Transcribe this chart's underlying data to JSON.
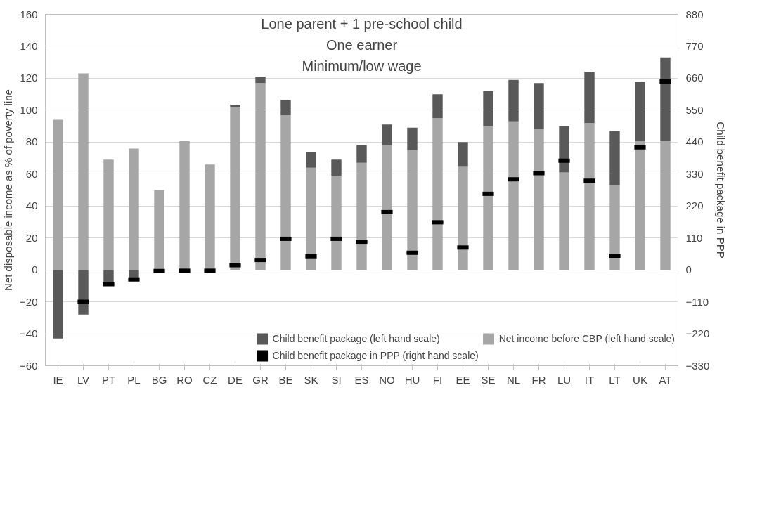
{
  "chart_data": {
    "type": "bar",
    "stacked": true,
    "title": "Lone parent + 1 pre-school child\nOne earner\nMinimum/low wage",
    "ylabel": "Net disposable income as % of poverty line",
    "y2label": "Child benefit package in PPP",
    "categories": [
      "IE",
      "LV",
      "PT",
      "PL",
      "BG",
      "RO",
      "CZ",
      "DE",
      "GR",
      "BE",
      "SK",
      "SI",
      "ES",
      "NO",
      "HU",
      "FI",
      "EE",
      "SE",
      "NL",
      "FR",
      "LU",
      "IT",
      "LT",
      "UK",
      "AT"
    ],
    "series": [
      {
        "name": "Net income before CBP (left hand scale)",
        "color": "#a6a6a6",
        "values": [
          94,
          123,
          69,
          76,
          50,
          81,
          66,
          102,
          117,
          97,
          64,
          59,
          67,
          78,
          75,
          95,
          65,
          90,
          93,
          88,
          61,
          92,
          53,
          81,
          81
        ]
      },
      {
        "name": "Child benefit package (left hand scale)",
        "color": "#595959",
        "values": [
          -43,
          -28,
          -8,
          -6,
          0,
          0,
          0,
          1.5,
          4,
          9.5,
          10,
          10,
          11,
          13,
          14,
          15,
          15,
          22,
          26,
          29,
          29,
          32,
          34,
          37,
          52
        ]
      },
      {
        "name": "Child benefit package in PPP (right hand scale)",
        "type": "scatter",
        "axis": "y2",
        "color": "#000000",
        "values": [
          null,
          -110,
          -49,
          -33,
          -4,
          -3,
          -3,
          16,
          34,
          107,
          47,
          107,
          97,
          199,
          59,
          164,
          77,
          262,
          312,
          333,
          376,
          307,
          49,
          422,
          649
        ]
      }
    ],
    "ylim": [
      -60,
      160
    ],
    "yticks": [
      -60,
      -40,
      -20,
      0,
      20,
      40,
      60,
      80,
      100,
      120,
      140,
      160
    ],
    "y2lim": [
      -330,
      880
    ],
    "y2ticks": [
      -330,
      -220,
      -110,
      0,
      110,
      220,
      330,
      440,
      550,
      660,
      770,
      880
    ],
    "grid": "y",
    "legend": "bottom"
  }
}
